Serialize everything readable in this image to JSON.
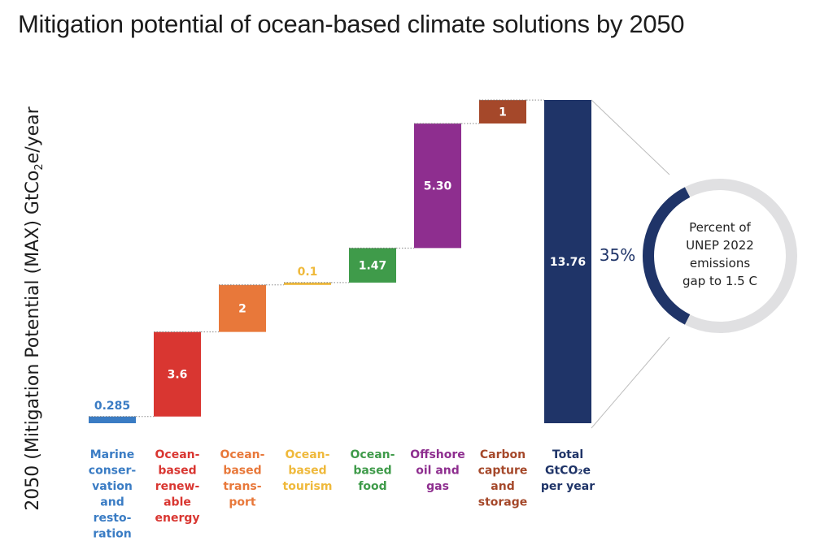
{
  "title": "Mitigation potential of ocean-based climate solutions by 2050",
  "ylabel": {
    "main": "2050 (Mitigation Potential (MAX) GtCo",
    "sub": "2",
    "tail": "e/year"
  },
  "chart_data": {
    "type": "bar",
    "subtype": "waterfall",
    "categories": [
      [
        "Marine",
        "conser-",
        "vation",
        "and",
        "resto-",
        "ration"
      ],
      [
        "Ocean-",
        "based",
        "renew-",
        "able",
        "energy"
      ],
      [
        "Ocean-",
        "based",
        "trans-",
        "port"
      ],
      [
        "Ocean-",
        "based",
        "tourism"
      ],
      [
        "Ocean-",
        "based",
        "food"
      ],
      [
        "Offshore",
        "oil and",
        "gas"
      ],
      [
        "Carbon",
        "capture",
        "and",
        "storage"
      ],
      [
        "Total",
        "GtCO₂e",
        "per year"
      ]
    ],
    "values": [
      0.285,
      3.6,
      2,
      0.1,
      1.47,
      5.3,
      1,
      13.76
    ],
    "value_labels": [
      "0.285",
      "3.6",
      "2",
      "0.1",
      "1.47",
      "5.30",
      "1",
      "13.76"
    ],
    "is_total": [
      false,
      false,
      false,
      false,
      false,
      false,
      false,
      true
    ],
    "colors": [
      "#3a7cc4",
      "#d93631",
      "#e8783a",
      "#efb93b",
      "#3f9b4a",
      "#8e2e8f",
      "#a5482a",
      "#1f3468"
    ],
    "ylim": [
      0,
      13.76
    ],
    "legend": "none",
    "grid": false
  },
  "donut": {
    "percent": 35,
    "percent_label": "35%",
    "text_lines": [
      "Percent of",
      "UNEP 2022",
      "emissions",
      "gap to 1.5 C"
    ],
    "fill_color": "#1f3468",
    "track_color": "#e0e0e2"
  }
}
